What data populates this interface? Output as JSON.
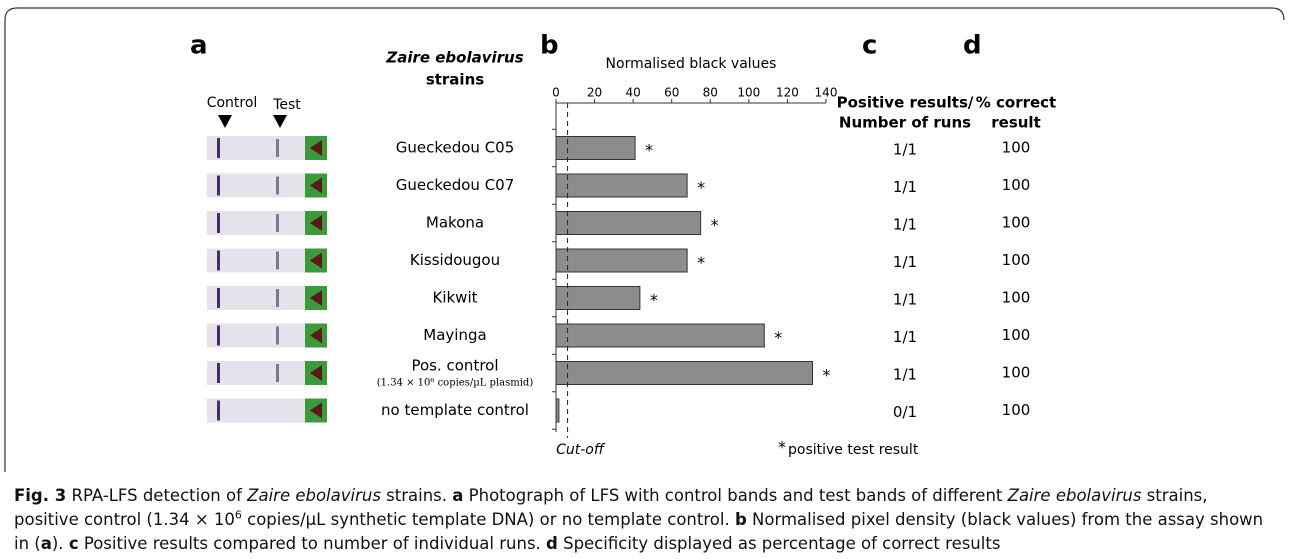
{
  "panel_a": {
    "label": "a",
    "control_label": "Control",
    "test_label": "Test"
  },
  "strains_header": {
    "italic": "Zaire ebolavirus",
    "plain": "strains"
  },
  "chart_data": {
    "type": "bar",
    "orientation": "horizontal",
    "label": "b",
    "title": "Normalised black values",
    "categories": [
      "Gueckedou C05",
      "Gueckedou C07",
      "Makona",
      "Kissidougou",
      "Kikwit",
      "Mayinga",
      "Pos. control",
      "no template control"
    ],
    "category_note": {
      "index": 6,
      "text": "(1.34 × 10⁶ copies/µL plasmid)"
    },
    "values": [
      41,
      68,
      75,
      68,
      43.5,
      108,
      133,
      1.5
    ],
    "positive": [
      true,
      true,
      true,
      true,
      true,
      true,
      true,
      false
    ],
    "positive_marker": "*",
    "positive_legend": "positive test result",
    "color": "#8c8c8c",
    "xlim": [
      0,
      140
    ],
    "xticks": [
      0,
      20,
      40,
      60,
      80,
      100,
      120,
      140
    ],
    "cutoff": 6,
    "cutoff_label": "Cut-off"
  },
  "panel_c": {
    "label": "c",
    "header": [
      "Positive results/",
      "Number of runs"
    ],
    "values": [
      "1/1",
      "1/1",
      "1/1",
      "1/1",
      "1/1",
      "1/1",
      "1/1",
      "0/1"
    ]
  },
  "panel_d": {
    "label": "d",
    "header": [
      "% correct",
      "result"
    ],
    "values": [
      "100",
      "100",
      "100",
      "100",
      "100",
      "100",
      "100",
      "100"
    ]
  },
  "caption": [
    {
      "text": "Fig. 3",
      "style": "bold"
    },
    {
      "text": " RPA-LFS detection of ",
      "style": "normal"
    },
    {
      "text": "Zaire ebolavirus",
      "style": "italic"
    },
    {
      "text": " strains. ",
      "style": "normal"
    },
    {
      "text": "a",
      "style": "bold"
    },
    {
      "text": " Photograph of LFS with control bands and test bands of different ",
      "style": "normal"
    },
    {
      "text": "Zaire ebolavirus",
      "style": "italic"
    },
    {
      "text": " strains, positive control (1.34 × 10",
      "style": "normal"
    },
    {
      "text": "6",
      "style": "sup"
    },
    {
      "text": " copies/μL synthetic template DNA) or no template control. ",
      "style": "normal"
    },
    {
      "text": "b",
      "style": "bold"
    },
    {
      "text": " Normalised pixel density (black values) from the assay shown in (",
      "style": "normal"
    },
    {
      "text": "a",
      "style": "bold"
    },
    {
      "text": "). ",
      "style": "normal"
    },
    {
      "text": "c",
      "style": "bold"
    },
    {
      "text": " Positive results compared to number of individual runs. ",
      "style": "normal"
    },
    {
      "text": "d",
      "style": "bold"
    },
    {
      "text": " Specificity displayed as percentage of correct results",
      "style": "normal"
    }
  ]
}
